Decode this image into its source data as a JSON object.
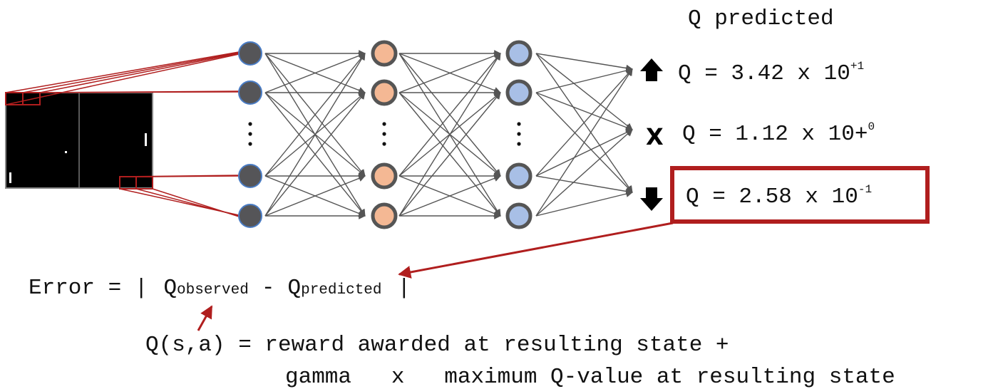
{
  "diagram": {
    "q_header": "Q predicted",
    "outputs": [
      {
        "icon": "up-arrow-icon",
        "prefix": "Q = 3.42 x 10",
        "exponent": "+1"
      },
      {
        "icon": "cross-icon",
        "prefix": "Q = 1.12 x 10+",
        "exponent": "0"
      },
      {
        "icon": "down-arrow-icon",
        "prefix": "Q = 2.58 x 10",
        "exponent": "-1"
      }
    ],
    "error": {
      "left": "Error = |",
      "q1": "Q",
      "sub1": "observed",
      "minus": "-",
      "q2": "Q",
      "sub2": "predicted",
      "right": "|"
    },
    "formula": {
      "line1": "Q(s,a) = reward awarded at resulting state +",
      "line2": "gamma   x   maximum Q-value at resulting state"
    },
    "dots": ".",
    "colors": {
      "input_node": "#555558",
      "input_stroke": "#4a7cc4",
      "hidden1_node": "#f4b894",
      "hidden2_node": "#a8bfe6",
      "hidden_stroke": "#555555",
      "highlight": "#b01e1e",
      "edge": "#555555"
    }
  }
}
